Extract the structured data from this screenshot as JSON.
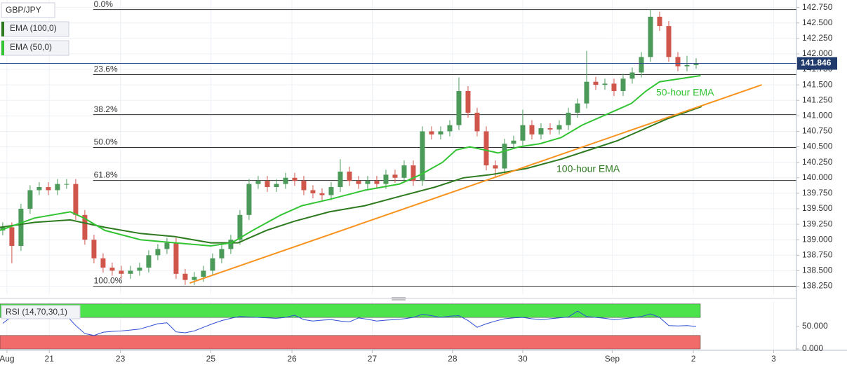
{
  "chart_data": {
    "type": "candlestick",
    "title": "GBP/JPY",
    "up_color": "#4c9a5a",
    "down_color": "#d0564c",
    "xlim": [
      -0.3,
      87
    ],
    "ylim": [
      138.12,
      142.87
    ],
    "xticks": [
      {
        "value": 0.46,
        "label": "Aug"
      },
      {
        "value": 5.1,
        "label": "21"
      },
      {
        "value": 12.9,
        "label": "23"
      },
      {
        "value": 22.8,
        "label": "25"
      },
      {
        "value": 31.7,
        "label": "26"
      },
      {
        "value": 40.5,
        "label": "27"
      },
      {
        "value": 49.3,
        "label": "28"
      },
      {
        "value": 57.0,
        "label": "30"
      },
      {
        "value": 66.8,
        "label": "Sep"
      },
      {
        "value": 75.7,
        "label": "2"
      },
      {
        "value": 84.5,
        "label": "3"
      }
    ],
    "yticks": [
      {
        "value": 138.25,
        "label": "138.250"
      },
      {
        "value": 138.5,
        "label": "138.500"
      },
      {
        "value": 138.75,
        "label": "138.750"
      },
      {
        "value": 139,
        "label": "139.000"
      },
      {
        "value": 139.25,
        "label": "139.250"
      },
      {
        "value": 139.5,
        "label": "139.500"
      },
      {
        "value": 139.75,
        "label": "139.750"
      },
      {
        "value": 140,
        "label": "140.000"
      },
      {
        "value": 140.25,
        "label": "140.250"
      },
      {
        "value": 140.5,
        "label": "140.500"
      },
      {
        "value": 140.75,
        "label": "140.750"
      },
      {
        "value": 141,
        "label": "141.000"
      },
      {
        "value": 141.25,
        "label": "141.250"
      },
      {
        "value": 141.5,
        "label": "141.500"
      },
      {
        "value": 141.75,
        "label": "141.750"
      },
      {
        "value": 142,
        "label": "142.000"
      },
      {
        "value": 142.25,
        "label": "142.250"
      },
      {
        "value": 142.5,
        "label": "142.500"
      },
      {
        "value": 142.75,
        "label": "142.750"
      }
    ],
    "grid": true,
    "open": [
      139.15,
      139.2,
      138.9,
      139.5,
      139.8,
      139.85,
      139.8,
      139.9,
      139.9,
      139.4,
      139.0,
      138.7,
      138.55,
      138.5,
      138.45,
      138.5,
      138.55,
      138.75,
      138.85,
      138.95,
      138.45,
      138.35,
      138.4,
      138.5,
      138.7,
      138.85,
      139.0,
      139.4,
      139.9,
      139.95,
      139.85,
      139.9,
      140.0,
      139.95,
      139.8,
      139.75,
      139.72,
      139.85,
      140.1,
      139.95,
      139.9,
      139.95,
      139.9,
      140.05,
      140.0,
      140.2,
      139.95,
      140.75,
      140.7,
      140.75,
      140.85,
      141.4,
      141.05,
      140.75,
      140.2,
      140.15,
      140.55,
      140.6,
      140.85,
      140.7,
      140.8,
      140.78,
      140.85,
      141.05,
      141.2,
      141.55,
      141.5,
      141.52,
      141.4,
      141.6,
      141.7,
      141.95,
      142.6,
      142.45,
      141.95,
      141.8,
      141.82
    ],
    "high": [
      139.28,
      139.28,
      139.58,
      139.88,
      139.93,
      139.93,
      139.98,
      139.98,
      139.98,
      139.48,
      139.08,
      138.78,
      138.63,
      138.58,
      138.58,
      138.63,
      138.83,
      138.93,
      139.03,
      139.03,
      138.53,
      138.48,
      138.58,
      138.78,
      138.93,
      139.08,
      139.48,
      139.98,
      140.03,
      140.03,
      139.98,
      140.08,
      140.08,
      140.03,
      139.88,
      139.83,
      139.93,
      140.3,
      140.18,
      140.03,
      140.03,
      140.03,
      140.13,
      140.13,
      140.28,
      140.28,
      140.83,
      140.83,
      140.83,
      140.93,
      141.62,
      141.48,
      141.13,
      140.83,
      140.28,
      140.63,
      140.68,
      141.1,
      140.93,
      140.88,
      140.88,
      140.93,
      141.13,
      141.28,
      142.05,
      141.63,
      141.6,
      141.6,
      141.68,
      141.78,
      142.03,
      142.72,
      142.68,
      142.53,
      142.03,
      141.97,
      141.93
    ],
    "low": [
      139.07,
      138.62,
      138.82,
      139.42,
      139.72,
      139.72,
      139.72,
      139.82,
      139.32,
      138.92,
      138.62,
      138.47,
      138.42,
      138.37,
      138.37,
      138.42,
      138.47,
      138.67,
      138.77,
      138.37,
      138.27,
      138.27,
      138.32,
      138.42,
      138.62,
      138.77,
      138.92,
      139.32,
      139.82,
      139.77,
      139.77,
      139.82,
      139.87,
      139.72,
      139.67,
      139.64,
      139.64,
      139.77,
      139.87,
      139.82,
      139.82,
      139.82,
      139.82,
      139.92,
      139.92,
      139.87,
      139.87,
      140.62,
      140.62,
      140.67,
      140.77,
      140.97,
      140.67,
      140.12,
      140.02,
      140.07,
      140.47,
      140.52,
      140.62,
      140.62,
      140.7,
      140.7,
      140.77,
      140.97,
      141.12,
      141.42,
      141.42,
      141.32,
      141.32,
      141.52,
      141.62,
      141.87,
      142.37,
      141.87,
      141.72,
      141.72,
      141.76
    ],
    "close": [
      139.2,
      138.9,
      139.5,
      139.8,
      139.85,
      139.8,
      139.9,
      139.9,
      139.4,
      139.0,
      138.7,
      138.55,
      138.5,
      138.45,
      138.5,
      138.55,
      138.75,
      138.85,
      138.95,
      138.45,
      138.35,
      138.4,
      138.5,
      138.7,
      138.85,
      139.0,
      139.4,
      139.9,
      139.95,
      139.85,
      139.9,
      140.0,
      139.95,
      139.8,
      139.75,
      139.72,
      139.85,
      140.1,
      139.95,
      139.9,
      139.95,
      139.9,
      140.05,
      140.0,
      140.2,
      139.95,
      140.75,
      140.7,
      140.75,
      140.85,
      141.4,
      141.05,
      140.75,
      140.2,
      140.15,
      140.55,
      140.6,
      140.85,
      140.7,
      140.8,
      140.78,
      140.85,
      141.05,
      141.2,
      141.55,
      141.5,
      141.52,
      141.4,
      141.6,
      141.7,
      141.95,
      142.6,
      142.45,
      141.95,
      141.8,
      141.82,
      141.846
    ],
    "last_price": 141.846,
    "series": [
      {
        "name": "EMA (100,0)",
        "color": "#2d7a1f",
        "annotation": "100-hour EMA",
        "x": [
          -0.3,
          3.5,
          7.4,
          11.2,
          15.1,
          18.9,
          22.8,
          25.8,
          28.9,
          32.0,
          35.8,
          39.7,
          43.5,
          47.4,
          50.5,
          53.5,
          57.4,
          61.2,
          64.3,
          67.4,
          70.5,
          72.8,
          76.6
        ],
        "values": [
          139.2,
          139.28,
          139.32,
          139.2,
          139.1,
          139.05,
          138.95,
          138.95,
          139.15,
          139.3,
          139.45,
          139.55,
          139.7,
          139.85,
          140.0,
          140.05,
          140.15,
          140.3,
          140.45,
          140.6,
          140.8,
          140.95,
          141.15
        ]
      },
      {
        "name": "EMA (50,0)",
        "color": "#33c433",
        "annotation": "50-hour EMA",
        "x": [
          -0.3,
          3.5,
          7.4,
          8.9,
          11.2,
          15.1,
          18.9,
          22.8,
          25.1,
          27.4,
          30.5,
          32.8,
          35.8,
          39.7,
          43.5,
          45.8,
          48.2,
          49.7,
          51.2,
          52.8,
          54.3,
          56.6,
          58.9,
          61.2,
          63.5,
          66.6,
          68.9,
          70.5,
          72.0,
          74.3,
          76.5
        ],
        "values": [
          139.15,
          139.35,
          139.45,
          139.35,
          139.15,
          139.0,
          138.95,
          138.9,
          138.95,
          139.15,
          139.4,
          139.55,
          139.65,
          139.8,
          139.9,
          140.05,
          140.25,
          140.45,
          140.5,
          140.45,
          140.4,
          140.5,
          140.55,
          140.65,
          140.85,
          141.05,
          141.2,
          141.4,
          141.55,
          141.6,
          141.65
        ]
      }
    ],
    "trendline": {
      "color": "#f7931e",
      "x": [
        20.5,
        83.2
      ],
      "values": [
        138.3,
        141.5
      ]
    },
    "fib_start": 9.9,
    "fib_levels": [
      {
        "value": 142.716,
        "label": "0.0%"
      },
      {
        "value": 141.665,
        "label": "23.6%"
      },
      {
        "value": 141.02,
        "label": "38.2%"
      },
      {
        "value": 140.49,
        "label": "50.0%"
      },
      {
        "value": 139.957,
        "label": "61.8%"
      },
      {
        "value": 138.25,
        "label": "100.0%"
      }
    ],
    "rsi": {
      "name": "RSI (14,70,30,1)",
      "color": "#2e4fd1",
      "ylim": [
        -3,
        106
      ],
      "yticks": [
        {
          "value": 50,
          "label": "50.000"
        },
        {
          "value": 0,
          "label": "0.000"
        }
      ],
      "upper_band": [
        70,
        100
      ],
      "lower_band": [
        0,
        30
      ],
      "upper_color": "#4de34d",
      "lower_color": "#f26b6b",
      "values": [
        57,
        72,
        76,
        77,
        72,
        72,
        74,
        74,
        52,
        34,
        30,
        37,
        39,
        40,
        42,
        44,
        50,
        56,
        58,
        38,
        36,
        40,
        48,
        56,
        63,
        68,
        72,
        71,
        70,
        69,
        68,
        70,
        75,
        65,
        62,
        64,
        65,
        62,
        60,
        69,
        66,
        62,
        64,
        65,
        67,
        70,
        77,
        74,
        70,
        73,
        74,
        63,
        48,
        56,
        62,
        67,
        69,
        70,
        67,
        65,
        67,
        69,
        71,
        84,
        72,
        70,
        68,
        65,
        67,
        69,
        72,
        78,
        70,
        52,
        51,
        52,
        50
      ]
    }
  }
}
